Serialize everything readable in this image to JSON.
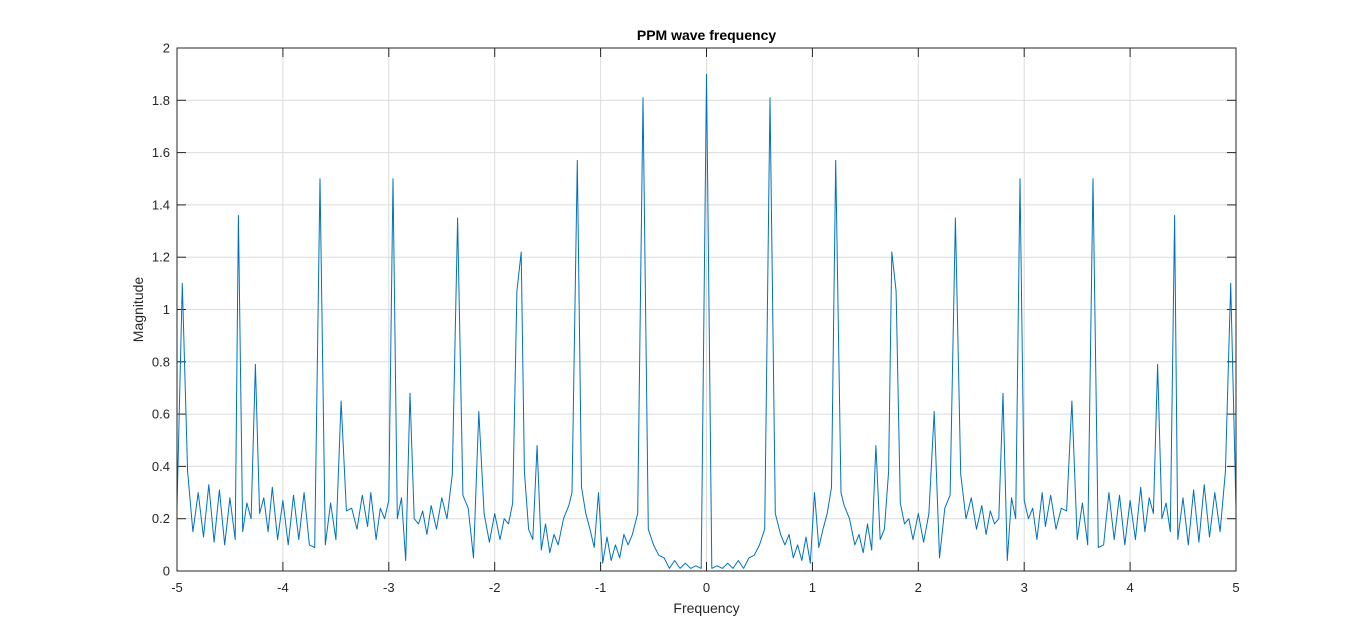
{
  "chart_data": {
    "type": "line",
    "title": "PPM wave frequency",
    "xlabel": "Frequency",
    "ylabel": "Magnitude",
    "xlim": [
      -5,
      5
    ],
    "ylim": [
      0,
      2
    ],
    "xticks": [
      "-5",
      "-4",
      "-3",
      "-2",
      "-1",
      "0",
      "1",
      "2",
      "3",
      "4",
      "5"
    ],
    "yticks": [
      "0",
      "0.2",
      "0.4",
      "0.6",
      "0.8",
      "1",
      "1.2",
      "1.4",
      "1.6",
      "1.8",
      "2"
    ],
    "grid": true,
    "series_color": "#0072bd",
    "series": [
      {
        "x": [
          -5.0,
          -4.95,
          -4.9,
          -4.85,
          -4.8,
          -4.75,
          -4.7,
          -4.65,
          -4.6,
          -4.55,
          -4.5,
          -4.45,
          -4.42,
          -4.38,
          -4.34,
          -4.3,
          -4.26,
          -4.22,
          -4.18,
          -4.14,
          -4.1,
          -4.05,
          -4.0,
          -3.95,
          -3.9,
          -3.85,
          -3.8,
          -3.75,
          -3.7,
          -3.65,
          -3.6,
          -3.55,
          -3.5,
          -3.45,
          -3.4,
          -3.35,
          -3.3,
          -3.25,
          -3.2,
          -3.17,
          -3.12,
          -3.08,
          -3.04,
          -3.0,
          -2.96,
          -2.92,
          -2.88,
          -2.84,
          -2.8,
          -2.76,
          -2.72,
          -2.68,
          -2.64,
          -2.6,
          -2.55,
          -2.5,
          -2.45,
          -2.4,
          -2.35,
          -2.3,
          -2.25,
          -2.2,
          -2.15,
          -2.1,
          -2.05,
          -2.0,
          -1.95,
          -1.91,
          -1.87,
          -1.83,
          -1.79,
          -1.75,
          -1.72,
          -1.68,
          -1.64,
          -1.6,
          -1.56,
          -1.52,
          -1.48,
          -1.44,
          -1.4,
          -1.35,
          -1.3,
          -1.27,
          -1.22,
          -1.18,
          -1.14,
          -1.1,
          -1.06,
          -1.02,
          -0.98,
          -0.94,
          -0.9,
          -0.86,
          -0.82,
          -0.78,
          -0.74,
          -0.7,
          -0.65,
          -0.6,
          -0.55,
          -0.5,
          -0.45,
          -0.4,
          -0.35,
          -0.3,
          -0.25,
          -0.2,
          -0.15,
          -0.1,
          -0.05,
          0.0,
          0.05,
          0.1,
          0.15,
          0.2,
          0.25,
          0.3,
          0.35,
          0.4,
          0.45,
          0.5,
          0.55,
          0.6,
          0.65,
          0.7,
          0.74,
          0.78,
          0.82,
          0.86,
          0.9,
          0.94,
          0.98,
          1.02,
          1.06,
          1.1,
          1.14,
          1.18,
          1.22,
          1.27,
          1.3,
          1.35,
          1.4,
          1.44,
          1.48,
          1.52,
          1.56,
          1.6,
          1.64,
          1.68,
          1.72,
          1.75,
          1.79,
          1.83,
          1.87,
          1.91,
          1.95,
          2.0,
          2.05,
          2.1,
          2.15,
          2.2,
          2.25,
          2.3,
          2.35,
          2.4,
          2.45,
          2.5,
          2.55,
          2.6,
          2.64,
          2.68,
          2.72,
          2.76,
          2.8,
          2.84,
          2.88,
          2.92,
          2.96,
          3.0,
          3.04,
          3.08,
          3.12,
          3.17,
          3.2,
          3.25,
          3.3,
          3.35,
          3.4,
          3.45,
          3.5,
          3.55,
          3.6,
          3.65,
          3.7,
          3.75,
          3.8,
          3.85,
          3.9,
          3.95,
          4.0,
          4.05,
          4.1,
          4.14,
          4.18,
          4.22,
          4.26,
          4.3,
          4.34,
          4.38,
          4.42,
          4.45,
          4.5,
          4.55,
          4.6,
          4.65,
          4.7,
          4.75,
          4.8,
          4.85,
          4.9,
          4.95,
          5.0
        ],
        "y": [
          0.24,
          1.1,
          0.38,
          0.15,
          0.3,
          0.13,
          0.33,
          0.11,
          0.31,
          0.1,
          0.28,
          0.12,
          1.36,
          0.15,
          0.26,
          0.2,
          0.79,
          0.22,
          0.28,
          0.15,
          0.32,
          0.12,
          0.27,
          0.1,
          0.29,
          0.12,
          0.3,
          0.1,
          0.09,
          1.5,
          0.1,
          0.26,
          0.12,
          0.65,
          0.23,
          0.24,
          0.16,
          0.29,
          0.17,
          0.3,
          0.12,
          0.24,
          0.2,
          0.27,
          1.5,
          0.2,
          0.28,
          0.04,
          0.68,
          0.2,
          0.18,
          0.23,
          0.14,
          0.25,
          0.16,
          0.28,
          0.2,
          0.37,
          1.35,
          0.29,
          0.24,
          0.05,
          0.61,
          0.22,
          0.11,
          0.22,
          0.12,
          0.2,
          0.18,
          0.26,
          1.07,
          1.22,
          0.38,
          0.16,
          0.12,
          0.48,
          0.08,
          0.18,
          0.07,
          0.14,
          0.1,
          0.2,
          0.25,
          0.3,
          1.57,
          0.32,
          0.22,
          0.16,
          0.09,
          0.3,
          0.03,
          0.13,
          0.04,
          0.1,
          0.05,
          0.14,
          0.1,
          0.14,
          0.22,
          1.81,
          0.16,
          0.1,
          0.06,
          0.05,
          0.01,
          0.04,
          0.01,
          0.03,
          0.01,
          0.02,
          0.01,
          1.9,
          0.01,
          0.02,
          0.01,
          0.03,
          0.01,
          0.04,
          0.01,
          0.05,
          0.06,
          0.1,
          0.16,
          1.81,
          0.22,
          0.14,
          0.1,
          0.14,
          0.05,
          0.1,
          0.04,
          0.13,
          0.03,
          0.3,
          0.09,
          0.16,
          0.22,
          0.32,
          1.57,
          0.3,
          0.25,
          0.2,
          0.1,
          0.14,
          0.07,
          0.18,
          0.08,
          0.48,
          0.12,
          0.16,
          0.38,
          1.22,
          1.07,
          0.26,
          0.18,
          0.2,
          0.12,
          0.22,
          0.11,
          0.22,
          0.61,
          0.05,
          0.24,
          0.29,
          1.35,
          0.37,
          0.2,
          0.28,
          0.16,
          0.25,
          0.14,
          0.23,
          0.18,
          0.2,
          0.68,
          0.04,
          0.28,
          0.2,
          1.5,
          0.27,
          0.2,
          0.24,
          0.12,
          0.3,
          0.17,
          0.29,
          0.16,
          0.24,
          0.23,
          0.65,
          0.12,
          0.26,
          0.1,
          1.5,
          0.09,
          0.1,
          0.3,
          0.12,
          0.29,
          0.1,
          0.27,
          0.12,
          0.32,
          0.15,
          0.28,
          0.22,
          0.79,
          0.2,
          0.26,
          0.15,
          1.36,
          0.12,
          0.28,
          0.1,
          0.31,
          0.11,
          0.33,
          0.13,
          0.3,
          0.15,
          0.38,
          1.1,
          0.24
        ]
      }
    ]
  }
}
